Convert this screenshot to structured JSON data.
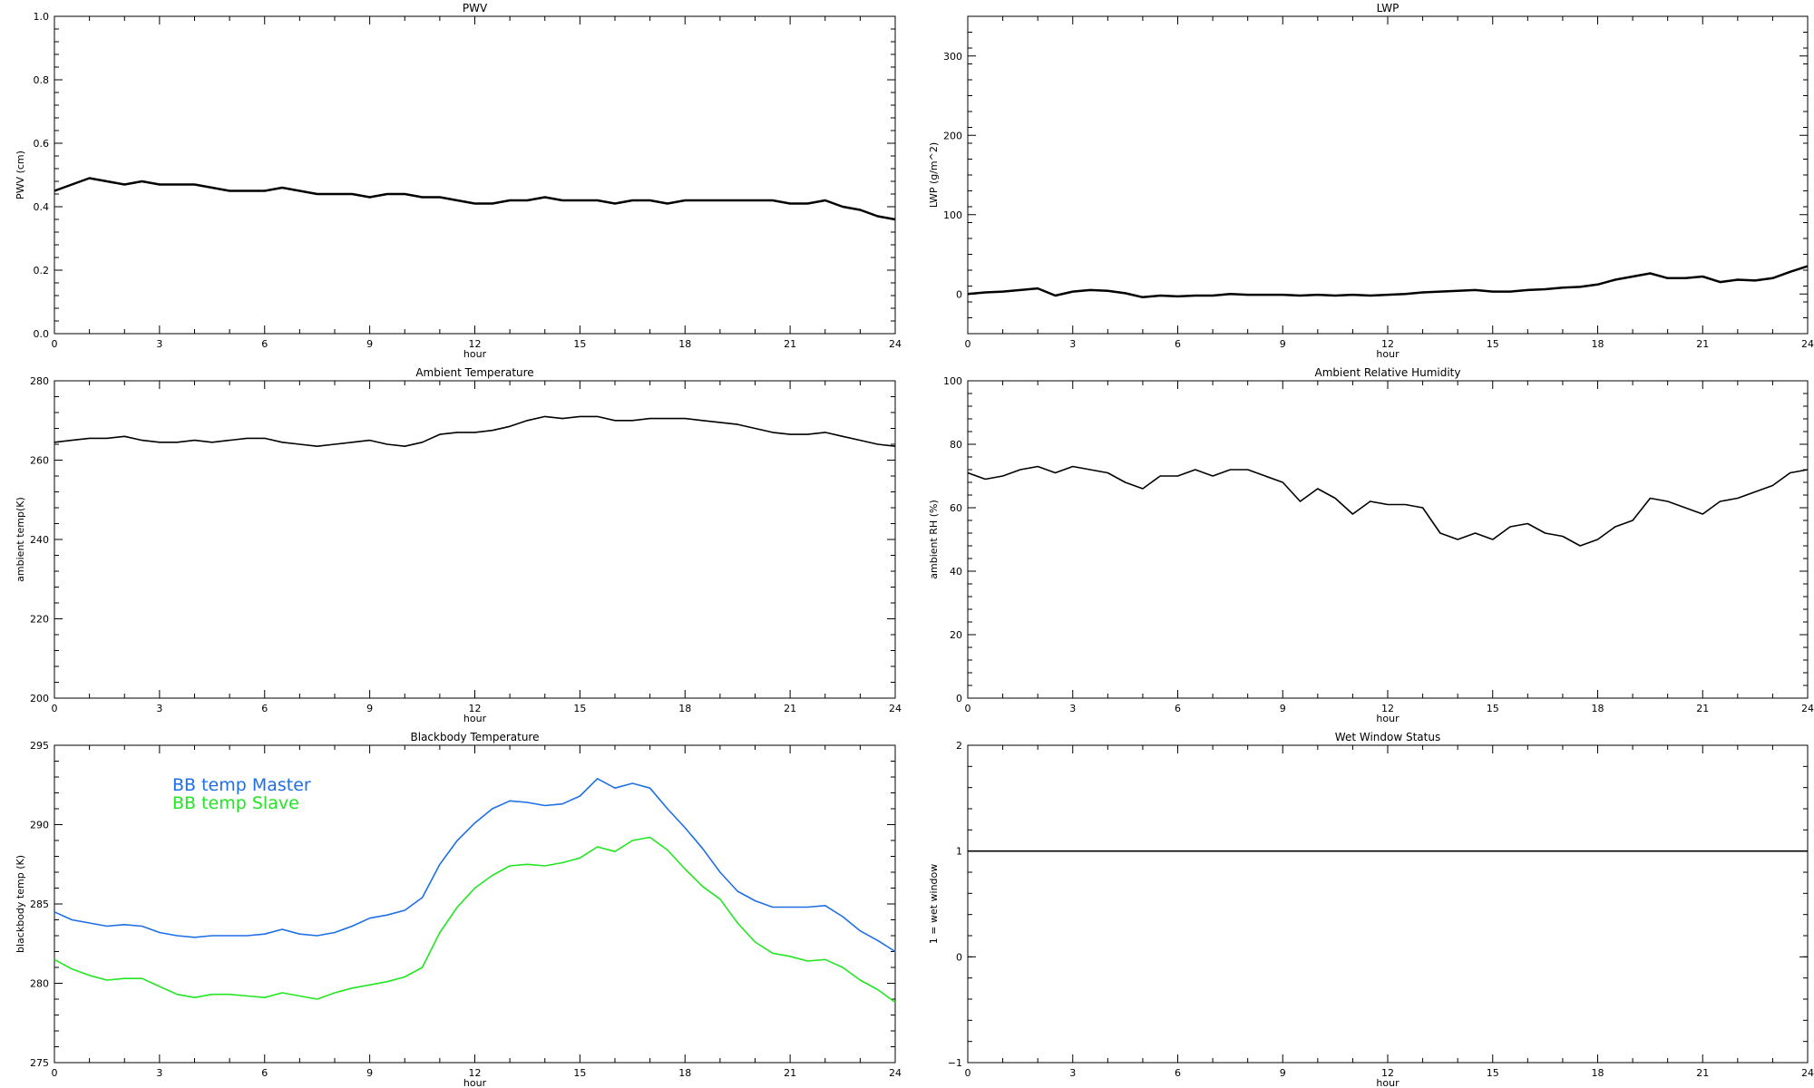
{
  "chart_data": [
    {
      "id": "pwv",
      "type": "line",
      "title": "PWV",
      "xlabel": "hour",
      "ylabel": "PWV (cm)",
      "xlim": [
        0,
        24
      ],
      "ylim": [
        0.0,
        1.0
      ],
      "xticks": [
        "0",
        "3",
        "6",
        "9",
        "12",
        "15",
        "18",
        "21",
        "24"
      ],
      "yticks": [
        "0.0",
        "0.2",
        "0.4",
        "0.6",
        "0.8",
        "1.0"
      ],
      "series": [
        {
          "color": "#000000",
          "x": [
            0,
            0.5,
            1.0,
            1.5,
            2.0,
            2.5,
            3.0,
            3.5,
            4.0,
            4.5,
            5.0,
            5.5,
            6.0,
            6.5,
            7.0,
            7.5,
            8.0,
            8.5,
            9.0,
            9.5,
            10.0,
            10.5,
            11.0,
            11.5,
            12.0,
            12.5,
            13.0,
            13.5,
            14.0,
            14.5,
            15.0,
            15.5,
            16.0,
            16.5,
            17.0,
            17.5,
            18.0,
            18.5,
            19.0,
            19.5,
            20.0,
            20.5,
            21.0,
            21.5,
            22.0,
            22.5,
            23.0,
            23.5,
            24.0
          ],
          "values": [
            0.45,
            0.47,
            0.49,
            0.48,
            0.47,
            0.48,
            0.47,
            0.47,
            0.47,
            0.46,
            0.45,
            0.45,
            0.45,
            0.46,
            0.45,
            0.44,
            0.44,
            0.44,
            0.43,
            0.44,
            0.44,
            0.43,
            0.43,
            0.42,
            0.41,
            0.41,
            0.42,
            0.42,
            0.43,
            0.42,
            0.42,
            0.42,
            0.41,
            0.42,
            0.42,
            0.41,
            0.42,
            0.42,
            0.42,
            0.42,
            0.42,
            0.42,
            0.41,
            0.41,
            0.42,
            0.4,
            0.39,
            0.37,
            0.36
          ]
        }
      ]
    },
    {
      "id": "lwp",
      "type": "line",
      "title": "LWP",
      "xlabel": "hour",
      "ylabel": "LWP (g/m^2)",
      "xlim": [
        0,
        24
      ],
      "ylim": [
        -50,
        350
      ],
      "xticks": [
        "0",
        "3",
        "6",
        "9",
        "12",
        "15",
        "18",
        "21",
        "24"
      ],
      "yticks": [
        "0",
        "100",
        "200",
        "300"
      ],
      "series": [
        {
          "color": "#000000",
          "x": [
            0,
            0.5,
            1.0,
            1.5,
            2.0,
            2.5,
            3.0,
            3.5,
            4.0,
            4.5,
            5.0,
            5.5,
            6.0,
            6.5,
            7.0,
            7.5,
            8.0,
            8.5,
            9.0,
            9.5,
            10.0,
            10.5,
            11.0,
            11.5,
            12.0,
            12.5,
            13.0,
            13.5,
            14.0,
            14.5,
            15.0,
            15.5,
            16.0,
            16.5,
            17.0,
            17.5,
            18.0,
            18.5,
            19.0,
            19.5,
            20.0,
            20.5,
            21.0,
            21.5,
            22.0,
            22.5,
            23.0,
            23.5,
            24.0
          ],
          "values": [
            0,
            2,
            3,
            5,
            7,
            -2,
            3,
            5,
            4,
            1,
            -4,
            -2,
            -3,
            -2,
            -2,
            0,
            -1,
            -1,
            -1,
            -2,
            -1,
            -2,
            -1,
            -2,
            -1,
            0,
            2,
            3,
            4,
            5,
            3,
            3,
            5,
            6,
            8,
            9,
            12,
            18,
            22,
            26,
            20,
            20,
            22,
            15,
            18,
            17,
            20,
            28,
            35
          ]
        }
      ]
    },
    {
      "id": "ambient-temperature",
      "type": "line",
      "title": "Ambient Temperature",
      "xlabel": "hour",
      "ylabel": "ambient temp(K)",
      "xlim": [
        0,
        24
      ],
      "ylim": [
        200,
        280
      ],
      "xticks": [
        "0",
        "3",
        "6",
        "9",
        "12",
        "15",
        "18",
        "21",
        "24"
      ],
      "yticks": [
        "200",
        "220",
        "240",
        "260",
        "280"
      ],
      "series": [
        {
          "color": "#000000",
          "x": [
            0,
            0.5,
            1.0,
            1.5,
            2.0,
            2.5,
            3.0,
            3.5,
            4.0,
            4.5,
            5.0,
            5.5,
            6.0,
            6.5,
            7.0,
            7.5,
            8.0,
            8.5,
            9.0,
            9.5,
            10.0,
            10.5,
            11.0,
            11.5,
            12.0,
            12.5,
            13.0,
            13.5,
            14.0,
            14.5,
            15.0,
            15.5,
            16.0,
            16.5,
            17.0,
            17.5,
            18.0,
            18.5,
            19.0,
            19.5,
            20.0,
            20.5,
            21.0,
            21.5,
            22.0,
            22.5,
            23.0,
            23.5,
            24.0
          ],
          "values": [
            264.5,
            265,
            265.5,
            265.5,
            266,
            265,
            264.5,
            264.5,
            265,
            264.5,
            265,
            265.5,
            265.5,
            264.5,
            264,
            263.5,
            264,
            264.5,
            265,
            264,
            263.5,
            264.5,
            266.5,
            267,
            267,
            267.5,
            268.5,
            270,
            271,
            270.5,
            271,
            271,
            270,
            270,
            270.5,
            270.5,
            270.5,
            270,
            269.5,
            269,
            268,
            267,
            266.5,
            266.5,
            267,
            266,
            265,
            264,
            263.5
          ]
        }
      ]
    },
    {
      "id": "ambient-relative-humidity",
      "type": "line",
      "title": "Ambient Relative Humidity",
      "xlabel": "hour",
      "ylabel": "ambient RH (%)",
      "xlim": [
        0,
        24
      ],
      "ylim": [
        0,
        100
      ],
      "xticks": [
        "0",
        "3",
        "6",
        "9",
        "12",
        "15",
        "18",
        "21",
        "24"
      ],
      "yticks": [
        "0",
        "20",
        "40",
        "60",
        "80",
        "100"
      ],
      "series": [
        {
          "color": "#000000",
          "x": [
            0,
            0.5,
            1.0,
            1.5,
            2.0,
            2.5,
            3.0,
            3.5,
            4.0,
            4.5,
            5.0,
            5.5,
            6.0,
            6.5,
            7.0,
            7.5,
            8.0,
            8.5,
            9.0,
            9.5,
            10.0,
            10.5,
            11.0,
            11.5,
            12.0,
            12.5,
            13.0,
            13.5,
            14.0,
            14.5,
            15.0,
            15.5,
            16.0,
            16.5,
            17.0,
            17.5,
            18.0,
            18.5,
            19.0,
            19.5,
            20.0,
            20.5,
            21.0,
            21.5,
            22.0,
            22.5,
            23.0,
            23.5,
            24.0
          ],
          "values": [
            71,
            69,
            70,
            72,
            73,
            71,
            73,
            72,
            71,
            68,
            66,
            70,
            70,
            72,
            70,
            72,
            72,
            70,
            68,
            62,
            66,
            63,
            58,
            62,
            61,
            61,
            60,
            52,
            50,
            52,
            50,
            54,
            55,
            52,
            51,
            48,
            50,
            54,
            56,
            63,
            62,
            60,
            58,
            62,
            63,
            65,
            67,
            71,
            72
          ]
        }
      ]
    },
    {
      "id": "blackbody-temperature",
      "type": "line",
      "title": "Blackbody Temperature",
      "xlabel": "hour",
      "ylabel": "blackbody temp (K)",
      "xlim": [
        0,
        24
      ],
      "ylim": [
        275,
        295
      ],
      "xticks": [
        "0",
        "3",
        "6",
        "9",
        "12",
        "15",
        "18",
        "21",
        "24"
      ],
      "yticks": [
        "275",
        "280",
        "285",
        "290",
        "295"
      ],
      "legend_position": "top-left",
      "series": [
        {
          "name": "BB temp Master",
          "color": "#1e6fe6",
          "x": [
            0,
            0.5,
            1.0,
            1.5,
            2.0,
            2.5,
            3.0,
            3.5,
            4.0,
            4.5,
            5.0,
            5.5,
            6.0,
            6.5,
            7.0,
            7.5,
            8.0,
            8.5,
            9.0,
            9.5,
            10.0,
            10.5,
            11.0,
            11.5,
            12.0,
            12.5,
            13.0,
            13.5,
            14.0,
            14.5,
            15.0,
            15.5,
            16.0,
            16.5,
            17.0,
            17.5,
            18.0,
            18.5,
            19.0,
            19.5,
            20.0,
            20.5,
            21.0,
            21.5,
            22.0,
            22.5,
            23.0,
            23.5,
            24.0
          ],
          "values": [
            284.5,
            284,
            283.8,
            283.6,
            283.7,
            283.6,
            283.2,
            283,
            282.9,
            283,
            283,
            283,
            283.1,
            283.4,
            283.1,
            283,
            283.2,
            283.6,
            284.1,
            284.3,
            284.6,
            285.4,
            287.5,
            289,
            290.1,
            291,
            291.5,
            291.4,
            291.2,
            291.3,
            291.8,
            292.9,
            292.3,
            292.6,
            292.3,
            291,
            289.8,
            288.5,
            287,
            285.8,
            285.2,
            284.8,
            284.8,
            284.8,
            284.9,
            284.2,
            283.3,
            282.7,
            282
          ]
        },
        {
          "name": "BB temp Slave",
          "color": "#22e622",
          "x": [
            0,
            0.5,
            1.0,
            1.5,
            2.0,
            2.5,
            3.0,
            3.5,
            4.0,
            4.5,
            5.0,
            5.5,
            6.0,
            6.5,
            7.0,
            7.5,
            8.0,
            8.5,
            9.0,
            9.5,
            10.0,
            10.5,
            11.0,
            11.5,
            12.0,
            12.5,
            13.0,
            13.5,
            14.0,
            14.5,
            15.0,
            15.5,
            16.0,
            16.5,
            17.0,
            17.5,
            18.0,
            18.5,
            19.0,
            19.5,
            20.0,
            20.5,
            21.0,
            21.5,
            22.0,
            22.5,
            23.0,
            23.5,
            24.0
          ],
          "values": [
            281.5,
            280.9,
            280.5,
            280.2,
            280.3,
            280.3,
            279.8,
            279.3,
            279.1,
            279.3,
            279.3,
            279.2,
            279.1,
            279.4,
            279.2,
            279,
            279.4,
            279.7,
            279.9,
            280.1,
            280.4,
            281,
            283.2,
            284.8,
            286,
            286.8,
            287.4,
            287.5,
            287.4,
            287.6,
            287.9,
            288.6,
            288.3,
            289,
            289.2,
            288.4,
            287.2,
            286.1,
            285.3,
            283.8,
            282.6,
            281.9,
            281.7,
            281.4,
            281.5,
            281,
            280.2,
            279.6,
            278.8
          ]
        }
      ]
    },
    {
      "id": "wet-window-status",
      "type": "line",
      "title": "Wet Window Status",
      "xlabel": "hour",
      "ylabel": "1 = wet window",
      "xlim": [
        0,
        24
      ],
      "ylim": [
        -1,
        2
      ],
      "xticks": [
        "0",
        "3",
        "6",
        "9",
        "12",
        "15",
        "18",
        "21",
        "24"
      ],
      "yticks": [
        "−1",
        "0",
        "1",
        "2"
      ],
      "series": [
        {
          "color": "#000000",
          "x": [
            0,
            24
          ],
          "values": [
            1,
            1
          ]
        }
      ]
    }
  ]
}
